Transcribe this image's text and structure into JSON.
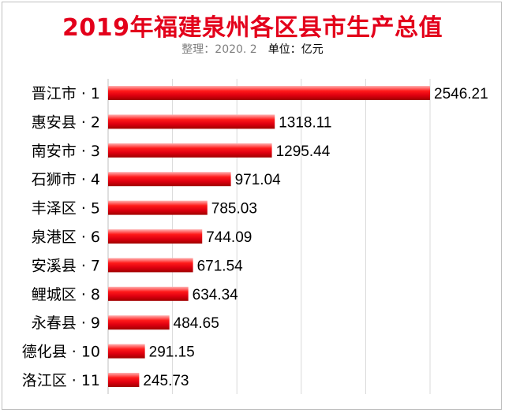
{
  "title": "2019年福建泉州各区县市生产总值",
  "subtitle": {
    "note": "整理：2020. 2",
    "unit": "单位：亿元"
  },
  "chart_data": {
    "type": "bar",
    "orientation": "horizontal",
    "title": "2019年福建泉州各区县市生产总值",
    "categories": [
      "晋江市 · 1",
      "惠安县 · 2",
      "南安市 · 3",
      "石狮市 · 4",
      "丰泽区 · 5",
      "泉港区 · 6",
      "安溪县 · 7",
      "鲤城区 · 8",
      "永春县 · 9",
      "德化县 · 10",
      "洛江区 · 11"
    ],
    "values": [
      2546.21,
      1318.11,
      1295.44,
      971.04,
      785.03,
      744.09,
      671.54,
      634.34,
      484.65,
      291.15,
      245.73
    ],
    "value_labels": [
      "2546.21",
      "1318.11",
      "1295.44",
      "971.04",
      "785.03",
      "744.09",
      "671.54",
      "634.34",
      "484.65",
      "291.15",
      "245.73"
    ],
    "xlim": [
      0,
      2546.21
    ],
    "grid": true,
    "legend": "none",
    "bar_color": "#e8101b"
  }
}
